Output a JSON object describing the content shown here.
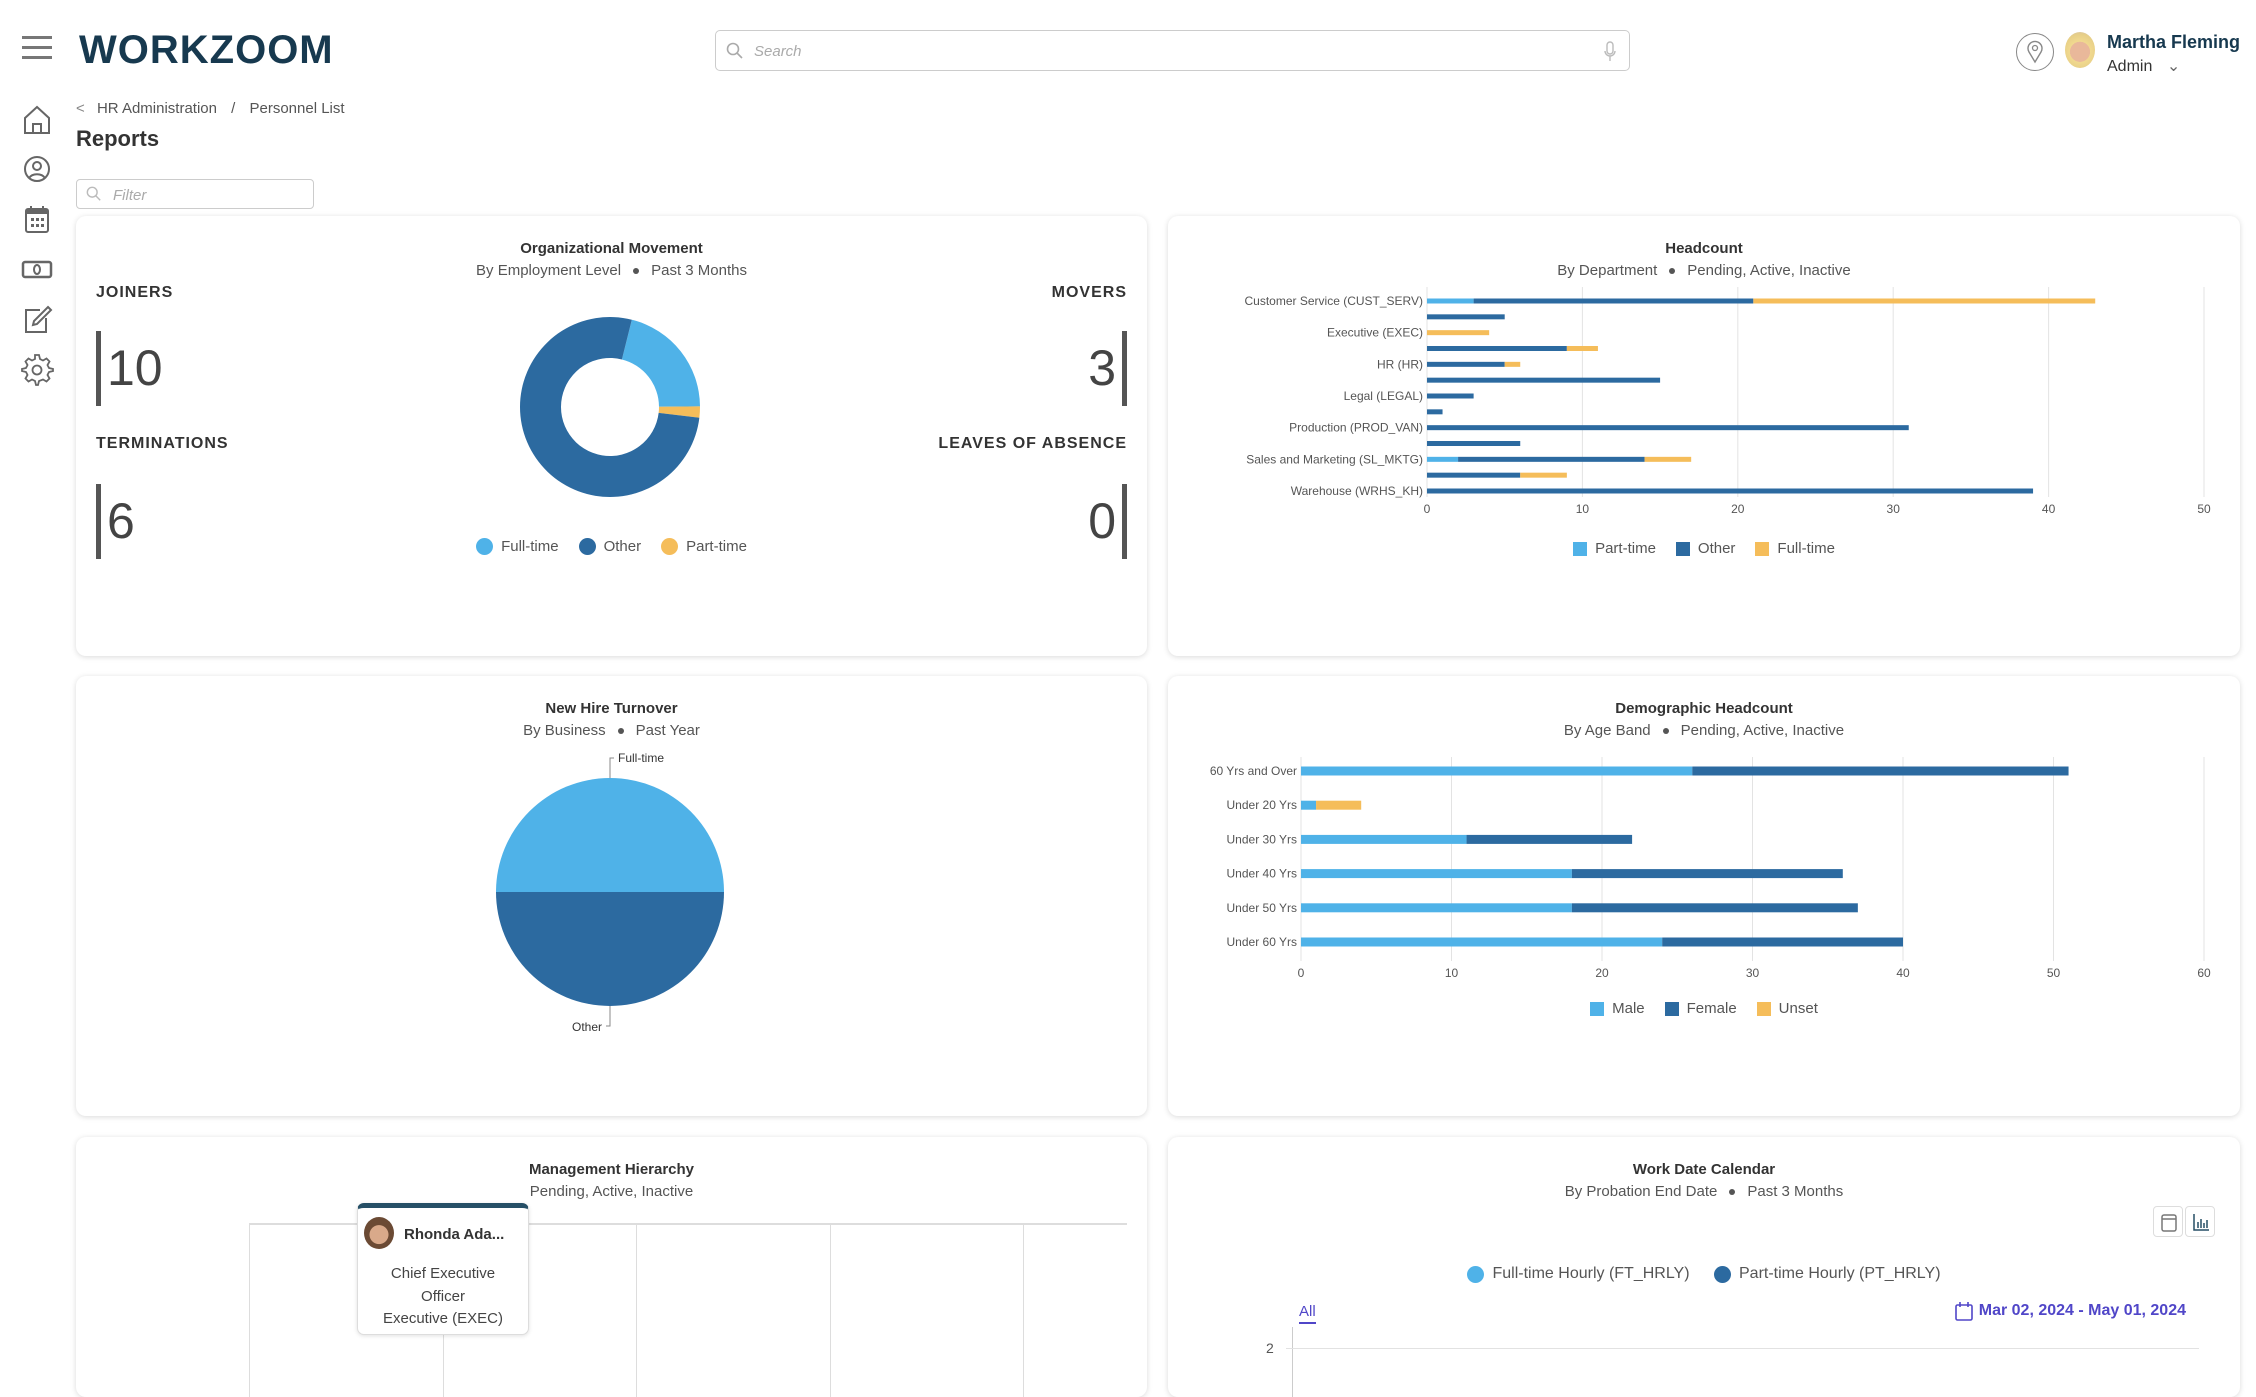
{
  "header": {
    "logo": "WORKZOOM",
    "search_placeholder": "Search",
    "user_name": "Martha Fleming",
    "user_role": "Admin"
  },
  "sidebar": {
    "items": [
      {
        "icon": "home-icon"
      },
      {
        "icon": "user-icon"
      },
      {
        "icon": "calendar-icon"
      },
      {
        "icon": "money-icon"
      },
      {
        "icon": "edit-icon"
      },
      {
        "icon": "gear-icon"
      }
    ]
  },
  "breadcrumb": {
    "back": "<",
    "items": [
      "HR Administration",
      "Personnel List"
    ],
    "sep": "/"
  },
  "page_title": "Reports",
  "filter_placeholder": "Filter",
  "colors": {
    "light_blue": "#4fb2e8",
    "dark_blue": "#2c6aa0",
    "orange": "#f5bd5a",
    "navy": "#17394f",
    "link": "#5046c8"
  },
  "org_movement": {
    "title": "Organizational Movement",
    "sub1": "By Employment Level",
    "sub2": "Past 3 Months",
    "stats": {
      "joiners_label": "JOINERS",
      "joiners": "10",
      "movers_label": "MOVERS",
      "movers": "3",
      "terminations_label": "TERMINATIONS",
      "terminations": "6",
      "leaves_label": "LEAVES OF ABSENCE",
      "leaves": "0"
    }
  },
  "headcount": {
    "title": "Headcount",
    "sub1": "By Department",
    "sub2": "Pending, Active, Inactive"
  },
  "new_hire": {
    "title": "New Hire Turnover",
    "sub1": "By Business",
    "sub2": "Past Year"
  },
  "demographic": {
    "title": "Demographic Headcount",
    "sub1": "By Age Band",
    "sub2": "Pending, Active, Inactive"
  },
  "hierarchy": {
    "title": "Management Hierarchy",
    "sub": "Pending, Active, Inactive",
    "node": {
      "name": "Rhonda Ada...",
      "title": "Chief Executive Officer",
      "dept": "Executive (EXEC)"
    }
  },
  "work_calendar": {
    "title": "Work Date Calendar",
    "sub1": "By Probation End Date",
    "sub2": "Past 3 Months",
    "tab_all": "All",
    "date_range": "Mar 02, 2024 - May 01, 2024",
    "legend": [
      "Full-time Hourly (FT_HRLY)",
      "Part-time Hourly (PT_HRLY)"
    ],
    "y_tick": "2"
  },
  "chart_data": [
    {
      "type": "pie",
      "donut": true,
      "unit": "percent",
      "categories": [
        "Full-time",
        "Other",
        "Part-time"
      ],
      "values": [
        21,
        77,
        2
      ],
      "legend": "bottom"
    },
    {
      "type": "bar",
      "orientation": "horizontal",
      "stacked": true,
      "categories": [
        "Customer Service (CUST_SERV)",
        "",
        "Executive (EXEC)",
        "",
        "HR (HR)",
        "",
        "Legal (LEGAL)",
        "",
        "Production (PROD_VAN)",
        "",
        "Sales and Marketing (SL_MKTG)",
        "",
        "Warehouse (WRHS_KH)"
      ],
      "series": [
        {
          "name": "Part-time",
          "values": [
            3,
            0,
            0,
            0,
            0,
            0,
            0,
            0,
            0,
            0,
            2,
            0,
            0
          ]
        },
        {
          "name": "Other",
          "values": [
            18,
            5,
            0,
            9,
            5,
            15,
            3,
            1,
            31,
            6,
            12,
            6,
            39
          ]
        },
        {
          "name": "Full-time",
          "values": [
            22,
            0,
            4,
            2,
            1,
            0,
            0,
            0,
            0,
            0,
            3,
            3,
            0
          ]
        }
      ],
      "xlim": [
        0,
        50
      ],
      "x_ticks": [
        "0",
        "10",
        "20",
        "30",
        "40",
        "50"
      ],
      "grid": true,
      "legend": "bottom"
    },
    {
      "type": "pie",
      "categories": [
        "Full-time",
        "Other"
      ],
      "values": [
        50,
        50
      ],
      "labels": [
        "Full-time",
        "Other"
      ]
    },
    {
      "type": "bar",
      "orientation": "horizontal",
      "stacked": true,
      "categories": [
        "60 Yrs and Over",
        "Under 20 Yrs",
        "Under 30 Yrs",
        "Under 40 Yrs",
        "Under 50 Yrs",
        "Under 60 Yrs"
      ],
      "series": [
        {
          "name": "Male",
          "values": [
            26,
            1,
            11,
            18,
            18,
            24
          ]
        },
        {
          "name": "Female",
          "values": [
            25,
            0,
            11,
            18,
            19,
            16
          ]
        },
        {
          "name": "Unset",
          "values": [
            0,
            3,
            0,
            0,
            0,
            0
          ]
        }
      ],
      "xlim": [
        0,
        60
      ],
      "x_ticks": [
        "0",
        "10",
        "20",
        "30",
        "40",
        "50",
        "60"
      ],
      "grid": true,
      "legend": "bottom"
    }
  ]
}
